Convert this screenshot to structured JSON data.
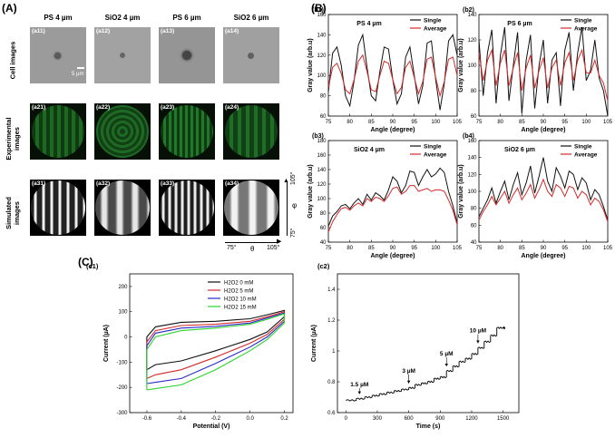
{
  "panels": {
    "A": "(A)",
    "B": "(B)",
    "C": "(C)"
  },
  "panelA": {
    "columns": [
      "PS 4 µm",
      "SiO2 4 µm",
      "PS 6 µm",
      "SiO2 6 µm"
    ],
    "rows": [
      "Cell images",
      "Experimental images",
      "Simulated images"
    ],
    "tags": [
      [
        "(a11)",
        "(a12)",
        "(a13)",
        "(a14)"
      ],
      [
        "(a21)",
        "(a22)",
        "(a23)",
        "(a24)"
      ],
      [
        "(a31)",
        "(a32)",
        "(a33)",
        "(a34)"
      ]
    ],
    "scalebar": "5 µm",
    "phi_axis": {
      "label": "φ",
      "top": "105°",
      "bottom": "75°"
    },
    "theta_axis": {
      "label": "θ",
      "left": "75°",
      "right": "105°"
    }
  },
  "colors": {
    "single": "#111111",
    "average": "#d42a2a",
    "h0": "#111111",
    "h5": "#d42a2a",
    "h10": "#2a2ac8",
    "h15": "#2ad42a"
  },
  "chart_data": [
    {
      "id": "b1",
      "type": "line",
      "label": "(b1)",
      "title": "PS 4 µm",
      "xlabel": "Angle (degree)",
      "ylabel": "Gray value (arb.u)",
      "xlim": [
        75,
        105
      ],
      "ylim": [
        60,
        160
      ],
      "xticks": [
        75,
        80,
        85,
        90,
        95,
        100,
        105
      ],
      "yticks": [
        60,
        80,
        100,
        120,
        140,
        160
      ],
      "legend": [
        "Single",
        "Average"
      ],
      "series": [
        {
          "name": "Single",
          "x": [
            75,
            76,
            77,
            78,
            79,
            80,
            81,
            82,
            83,
            84,
            85,
            86,
            87,
            88,
            89,
            90,
            91,
            92,
            93,
            94,
            95,
            96,
            97,
            98,
            99,
            100,
            101,
            102,
            103,
            104,
            105
          ],
          "values": [
            84,
            122,
            128,
            110,
            80,
            70,
            95,
            130,
            140,
            108,
            80,
            75,
            104,
            128,
            126,
            96,
            72,
            82,
            118,
            128,
            100,
            72,
            90,
            132,
            134,
            96,
            66,
            92,
            134,
            140,
            120
          ]
        },
        {
          "name": "Average",
          "x": [
            75,
            76,
            77,
            78,
            79,
            80,
            81,
            82,
            83,
            84,
            85,
            86,
            87,
            88,
            89,
            90,
            91,
            92,
            93,
            94,
            95,
            96,
            97,
            98,
            99,
            100,
            101,
            102,
            103,
            104,
            105
          ],
          "values": [
            88,
            108,
            112,
            102,
            86,
            82,
            96,
            114,
            120,
            104,
            86,
            84,
            100,
            114,
            112,
            96,
            82,
            88,
            108,
            114,
            98,
            82,
            94,
            116,
            118,
            98,
            80,
            94,
            116,
            118,
            100
          ]
        }
      ]
    },
    {
      "id": "b2",
      "type": "line",
      "label": "(b2)",
      "title": "PS 6 µm",
      "xlabel": "Angle (degree)",
      "ylabel": "Gray value (arb.u)",
      "xlim": [
        75,
        105
      ],
      "ylim": [
        60,
        140
      ],
      "xticks": [
        75,
        80,
        85,
        90,
        95,
        100,
        105
      ],
      "yticks": [
        60,
        80,
        100,
        120,
        140
      ],
      "legend": [
        "Single",
        "Average"
      ],
      "series": [
        {
          "name": "Single",
          "x": [
            75,
            76,
            77,
            78,
            79,
            80,
            81,
            82,
            83,
            84,
            85,
            86,
            87,
            88,
            89,
            90,
            91,
            92,
            93,
            94,
            95,
            96,
            97,
            98,
            99,
            100,
            101,
            102,
            103,
            104,
            105
          ],
          "values": [
            120,
            76,
            110,
            128,
            70,
            108,
            130,
            72,
            100,
            126,
            62,
            104,
            124,
            66,
            100,
            120,
            70,
            104,
            110,
            68,
            112,
            126,
            80,
            110,
            130,
            88,
            96,
            120,
            90,
            80,
            60
          ]
        },
        {
          "name": "Average",
          "x": [
            75,
            76,
            77,
            78,
            79,
            80,
            81,
            82,
            83,
            84,
            85,
            86,
            87,
            88,
            89,
            90,
            91,
            92,
            93,
            94,
            95,
            96,
            97,
            98,
            99,
            100,
            101,
            102,
            103,
            104,
            105
          ],
          "values": [
            110,
            88,
            104,
            112,
            84,
            102,
            112,
            84,
            98,
            110,
            80,
            98,
            108,
            82,
            96,
            106,
            82,
            98,
            104,
            84,
            102,
            110,
            88,
            104,
            112,
            94,
            94,
            104,
            92,
            86,
            72
          ]
        }
      ]
    },
    {
      "id": "b3",
      "type": "line",
      "label": "(b3)",
      "title": "SiO2 4 µm",
      "xlabel": "Angle (degree)",
      "ylabel": "Gray value (arb.u)",
      "xlim": [
        75,
        105
      ],
      "ylim": [
        40,
        180
      ],
      "xticks": [
        75,
        80,
        85,
        90,
        95,
        100,
        105
      ],
      "yticks": [
        40,
        60,
        80,
        100,
        120,
        140,
        160,
        180
      ],
      "legend": [
        "Single",
        "Average"
      ],
      "series": [
        {
          "name": "Single",
          "x": [
            75,
            76,
            77,
            78,
            79,
            80,
            81,
            82,
            83,
            84,
            85,
            86,
            87,
            88,
            89,
            90,
            91,
            92,
            93,
            94,
            95,
            96,
            97,
            98,
            99,
            100,
            101,
            102,
            103,
            104,
            105
          ],
          "values": [
            62,
            76,
            82,
            90,
            92,
            86,
            94,
            100,
            92,
            106,
            98,
            108,
            104,
            98,
            112,
            130,
            124,
            108,
            118,
            138,
            136,
            118,
            130,
            140,
            130,
            134,
            142,
            136,
            110,
            90,
            66
          ]
        },
        {
          "name": "Average",
          "x": [
            75,
            76,
            77,
            78,
            79,
            80,
            81,
            82,
            83,
            84,
            85,
            86,
            87,
            88,
            89,
            90,
            91,
            92,
            93,
            94,
            95,
            96,
            97,
            98,
            99,
            100,
            101,
            102,
            103,
            104,
            105
          ],
          "values": [
            54,
            68,
            78,
            86,
            88,
            84,
            90,
            94,
            90,
            100,
            96,
            102,
            100,
            96,
            104,
            114,
            116,
            106,
            110,
            118,
            118,
            110,
            112,
            114,
            110,
            112,
            112,
            110,
            98,
            84,
            64
          ]
        }
      ]
    },
    {
      "id": "b4",
      "type": "line",
      "label": "(b4)",
      "title": "SiO2 6 µm",
      "xlabel": "Angle (degree)",
      "ylabel": "Gray value (arb.u)",
      "xlim": [
        75,
        105
      ],
      "ylim": [
        40,
        160
      ],
      "xticks": [
        75,
        80,
        85,
        90,
        95,
        100,
        105
      ],
      "yticks": [
        40,
        60,
        80,
        100,
        120,
        140,
        160
      ],
      "legend": [
        "Single",
        "Average"
      ],
      "series": [
        {
          "name": "Single",
          "x": [
            75,
            76,
            77,
            78,
            79,
            80,
            81,
            82,
            83,
            84,
            85,
            86,
            87,
            88,
            89,
            90,
            91,
            92,
            93,
            94,
            95,
            96,
            97,
            98,
            99,
            100,
            101,
            102,
            103,
            104,
            105
          ],
          "values": [
            70,
            80,
            90,
            104,
            86,
            100,
            112,
            90,
            108,
            122,
            96,
            110,
            130,
            98,
            118,
            140,
            112,
            100,
            128,
            118,
            104,
            124,
            120,
            102,
            116,
            110,
            90,
            102,
            96,
            82,
            66
          ]
        },
        {
          "name": "Average",
          "x": [
            75,
            76,
            77,
            78,
            79,
            80,
            81,
            82,
            83,
            84,
            85,
            86,
            87,
            88,
            89,
            90,
            91,
            92,
            93,
            94,
            95,
            96,
            97,
            98,
            99,
            100,
            101,
            102,
            103,
            104,
            105
          ],
          "values": [
            66,
            76,
            84,
            94,
            84,
            92,
            100,
            86,
            96,
            104,
            90,
            98,
            108,
            92,
            102,
            114,
            100,
            94,
            108,
            104,
            94,
            106,
            104,
            92,
            100,
            96,
            84,
            92,
            88,
            78,
            64
          ]
        }
      ]
    },
    {
      "id": "c1",
      "type": "line",
      "label": "(c1)",
      "title": "",
      "xlabel": "Potential (V)",
      "ylabel": "Current (µA)",
      "xlim": [
        -0.7,
        0.25
      ],
      "ylim": [
        -300,
        250
      ],
      "xticks": [
        -0.6,
        -0.4,
        -0.2,
        0.0,
        0.2
      ],
      "xticklabels": [
        "-0.6",
        "-0.4",
        "-0.2",
        "0.0",
        "0.2"
      ],
      "yticks": [
        -300,
        -200,
        -100,
        0,
        100,
        200
      ],
      "ytickslabels": [
        "-300",
        "-200",
        "-100",
        "0",
        "100",
        "200"
      ],
      "legend": [
        "H2O2 0 mM",
        "H2O2 5 mM",
        "H2O2 10 mM",
        "H2O2 15 mM"
      ],
      "series": [
        {
          "name": "H2O2 0 mM",
          "upper": [
            [
              -0.6,
              -130
            ],
            [
              -0.6,
              0
            ],
            [
              -0.55,
              40
            ],
            [
              -0.4,
              58
            ],
            [
              -0.2,
              62
            ],
            [
              0,
              72
            ],
            [
              0.1,
              88
            ],
            [
              0.2,
              105
            ]
          ],
          "lower": [
            [
              0.2,
              105
            ],
            [
              0.2,
              80
            ],
            [
              0.1,
              20
            ],
            [
              0,
              -10
            ],
            [
              -0.2,
              -55
            ],
            [
              -0.4,
              -95
            ],
            [
              -0.55,
              -110
            ],
            [
              -0.6,
              -130
            ]
          ]
        },
        {
          "name": "H2O2 5 mM",
          "upper": [
            [
              -0.6,
              -165
            ],
            [
              -0.6,
              -20
            ],
            [
              -0.55,
              25
            ],
            [
              -0.4,
              45
            ],
            [
              -0.2,
              50
            ],
            [
              0,
              62
            ],
            [
              0.1,
              80
            ],
            [
              0.2,
              100
            ]
          ],
          "lower": [
            [
              0.2,
              100
            ],
            [
              0.2,
              70
            ],
            [
              0.1,
              10
            ],
            [
              0,
              -25
            ],
            [
              -0.2,
              -80
            ],
            [
              -0.4,
              -130
            ],
            [
              -0.55,
              -150
            ],
            [
              -0.6,
              -165
            ]
          ]
        },
        {
          "name": "H2O2 10 mM",
          "upper": [
            [
              -0.6,
              -185
            ],
            [
              -0.6,
              -35
            ],
            [
              -0.55,
              15
            ],
            [
              -0.4,
              35
            ],
            [
              -0.2,
              42
            ],
            [
              0,
              55
            ],
            [
              0.1,
              75
            ],
            [
              0.2,
              95
            ]
          ],
          "lower": [
            [
              0.2,
              95
            ],
            [
              0.2,
              62
            ],
            [
              0.1,
              0
            ],
            [
              0,
              -40
            ],
            [
              -0.2,
              -105
            ],
            [
              -0.4,
              -165
            ],
            [
              -0.55,
              -180
            ],
            [
              -0.6,
              -185
            ]
          ]
        },
        {
          "name": "H2O2 15 mM",
          "upper": [
            [
              -0.6,
              -210
            ],
            [
              -0.6,
              -50
            ],
            [
              -0.55,
              0
            ],
            [
              -0.4,
              25
            ],
            [
              -0.2,
              35
            ],
            [
              0,
              50
            ],
            [
              0.1,
              70
            ],
            [
              0.2,
              92
            ]
          ],
          "lower": [
            [
              0.2,
              92
            ],
            [
              0.2,
              55
            ],
            [
              0.1,
              -10
            ],
            [
              0,
              -55
            ],
            [
              -0.2,
              -130
            ],
            [
              -0.4,
              -190
            ],
            [
              -0.55,
              -205
            ],
            [
              -0.6,
              -210
            ]
          ]
        }
      ]
    },
    {
      "id": "c2",
      "type": "line",
      "label": "(c2)",
      "title": "",
      "xlabel": "Time (s)",
      "ylabel": "Current (µA)",
      "xlim": [
        -80,
        1650
      ],
      "ylim": [
        0.6,
        1.5
      ],
      "xticks": [
        0,
        300,
        600,
        900,
        1200,
        1500
      ],
      "yticks": [
        0.6,
        0.8,
        1.0,
        1.2,
        1.4
      ],
      "annotations": [
        "1.5 µM",
        "3 µM",
        "5 µM",
        "10 µM"
      ],
      "steps_t": [
        0,
        100,
        180,
        250,
        320,
        390,
        460,
        530,
        600,
        660,
        720,
        780,
        840,
        900,
        960,
        1020,
        1080,
        1140,
        1200,
        1260,
        1320,
        1380,
        1440,
        1500
      ],
      "steps_i": [
        0.68,
        0.69,
        0.7,
        0.71,
        0.72,
        0.73,
        0.74,
        0.75,
        0.76,
        0.78,
        0.79,
        0.8,
        0.82,
        0.83,
        0.87,
        0.9,
        0.93,
        0.95,
        0.98,
        1.02,
        1.06,
        1.1,
        1.15,
        1.15
      ]
    }
  ]
}
